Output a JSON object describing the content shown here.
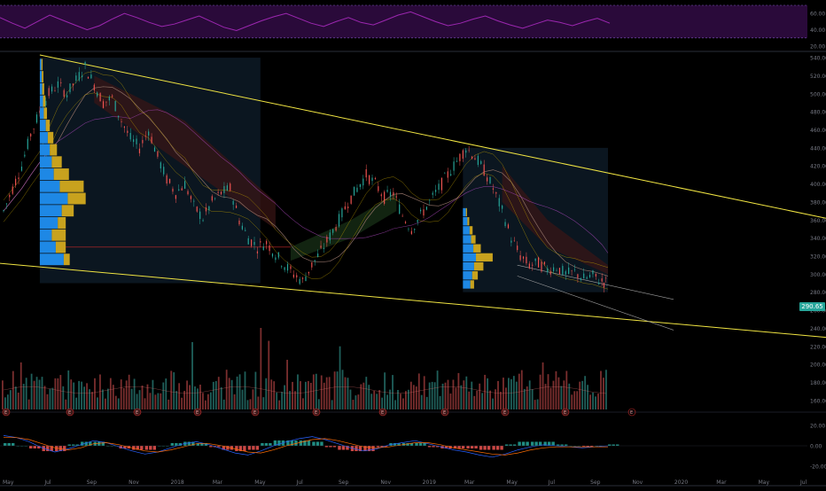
{
  "colors": {
    "background": "#000000",
    "axis_text": "#787b86",
    "up": "#26a69a",
    "down": "#ef5350",
    "trendline": "#f0e442",
    "rsi": "#9c27b0",
    "rsi_band": "#2a0a3a",
    "volume_profile_up": "#1e88e5",
    "volume_profile_down": "#c8a21e",
    "vol_ma": "#e57373"
  },
  "price_badge": "290.65",
  "chart_data": [
    {
      "type": "line",
      "name": "RSI pane",
      "y_ticks": [
        "60.00",
        "40.00",
        "20.00"
      ],
      "ylim": [
        20,
        70
      ],
      "levels": [
        70,
        30
      ],
      "series": [
        {
          "values": [
            55,
            48,
            42,
            50,
            58,
            52,
            46,
            40,
            45,
            53,
            60,
            55,
            49,
            44,
            47,
            52,
            57,
            50,
            43,
            39,
            45,
            51,
            56,
            60,
            54,
            48,
            44,
            50,
            55,
            49,
            46,
            52,
            58,
            62,
            56,
            50,
            45,
            48,
            53,
            57,
            51,
            46,
            42,
            47,
            52,
            49,
            45,
            50,
            54,
            48
          ]
        }
      ]
    },
    {
      "type": "candlestick",
      "name": "Price pane",
      "y_ticks": [
        "540.00",
        "520.00",
        "500.00",
        "480.00",
        "460.00",
        "440.00",
        "420.00",
        "400.00",
        "380.00",
        "360.00",
        "340.00",
        "320.00",
        "300.00",
        "280.00",
        "260.00",
        "240.00",
        "220.00",
        "200.00",
        "180.00",
        "160.00"
      ],
      "ylim": [
        150,
        545
      ],
      "x_ticks": [
        "May",
        "Jul",
        "Sep",
        "Nov",
        "2018",
        "Mar",
        "May",
        "Jul",
        "Sep",
        "Nov",
        "2019",
        "Mar",
        "May",
        "Jul",
        "Sep",
        "Nov",
        "2020",
        "Mar",
        "May",
        "Jul"
      ],
      "price_path": [
        [
          0,
          370
        ],
        [
          3,
          395
        ],
        [
          6,
          420
        ],
        [
          9,
          455
        ],
        [
          12,
          480
        ],
        [
          15,
          500
        ],
        [
          18,
          510
        ],
        [
          21,
          500
        ],
        [
          24,
          515
        ],
        [
          27,
          530
        ],
        [
          30,
          510
        ],
        [
          33,
          490
        ],
        [
          36,
          495
        ],
        [
          39,
          470
        ],
        [
          42,
          450
        ],
        [
          45,
          440
        ],
        [
          48,
          460
        ],
        [
          51,
          430
        ],
        [
          54,
          405
        ],
        [
          57,
          390
        ],
        [
          60,
          400
        ],
        [
          63,
          375
        ],
        [
          66,
          362
        ],
        [
          69,
          380
        ],
        [
          72,
          390
        ],
        [
          75,
          395
        ],
        [
          78,
          360
        ],
        [
          81,
          340
        ],
        [
          84,
          330
        ],
        [
          87,
          335
        ],
        [
          90,
          322
        ],
        [
          93,
          310
        ],
        [
          96,
          300
        ],
        [
          99,
          292
        ],
        [
          102,
          310
        ],
        [
          105,
          325
        ],
        [
          108,
          342
        ],
        [
          111,
          360
        ],
        [
          114,
          380
        ],
        [
          117,
          395
        ],
        [
          120,
          410
        ],
        [
          123,
          400
        ],
        [
          126,
          385
        ],
        [
          129,
          390
        ],
        [
          132,
          365
        ],
        [
          135,
          350
        ],
        [
          138,
          365
        ],
        [
          141,
          380
        ],
        [
          144,
          395
        ],
        [
          147,
          410
        ],
        [
          150,
          425
        ],
        [
          153,
          440
        ],
        [
          156,
          430
        ],
        [
          159,
          415
        ],
        [
          162,
          395
        ],
        [
          165,
          370
        ],
        [
          168,
          340
        ],
        [
          171,
          320
        ],
        [
          174,
          310
        ],
        [
          177,
          312
        ],
        [
          180,
          305
        ],
        [
          183,
          308
        ],
        [
          186,
          300
        ],
        [
          189,
          302
        ],
        [
          192,
          295
        ],
        [
          195,
          298
        ],
        [
          198,
          292
        ],
        [
          200,
          290
        ]
      ],
      "volume_profiles": [
        {
          "bins_up": [
            60,
            40,
            30,
            45,
            55,
            70,
            50,
            35,
            30,
            25,
            20,
            15,
            10,
            8,
            6,
            5,
            4
          ],
          "bins_down": [
            15,
            25,
            35,
            20,
            30,
            45,
            60,
            38,
            25,
            18,
            14,
            10,
            8,
            6,
            5,
            4,
            3
          ]
        },
        {
          "bins_up": [
            20,
            25,
            30,
            35,
            28,
            22,
            18,
            12,
            8
          ],
          "bins_down": [
            10,
            15,
            25,
            45,
            20,
            12,
            8,
            5,
            3
          ]
        }
      ]
    },
    {
      "type": "bar",
      "name": "Volume",
      "earnings_markers": [
        "E",
        "E",
        "E",
        "E",
        "E",
        "E",
        "E",
        "E",
        "E",
        "E"
      ]
    },
    {
      "type": "line",
      "name": "MACD pane",
      "y_ticks": [
        "20.00",
        "0.00",
        "-20.00"
      ],
      "ylim": [
        -25,
        25
      ],
      "series": [
        {
          "values": [
            10,
            8,
            4,
            -2,
            -6,
            -3,
            1,
            5,
            3,
            -1,
            -5,
            -8,
            -6,
            -2,
            2,
            4,
            1,
            -3,
            -7,
            -9,
            -5,
            0,
            4,
            7,
            9,
            6,
            2,
            -2,
            -5,
            -3,
            1,
            3,
            5,
            2,
            -1,
            -4,
            -6,
            -9,
            -11,
            -8,
            -4,
            -1,
            1,
            0,
            -1,
            -2,
            -1,
            0
          ]
        },
        {
          "values": [
            8,
            8,
            6,
            2,
            -2,
            -4,
            -2,
            2,
            3,
            1,
            -2,
            -5,
            -6,
            -4,
            -1,
            2,
            2,
            0,
            -3,
            -6,
            -7,
            -4,
            0,
            3,
            6,
            7,
            5,
            2,
            -1,
            -2,
            -1,
            1,
            3,
            3,
            1,
            -2,
            -4,
            -6,
            -8,
            -9,
            -7,
            -4,
            -2,
            -1,
            -1,
            -1,
            -1,
            -1
          ]
        }
      ]
    }
  ]
}
